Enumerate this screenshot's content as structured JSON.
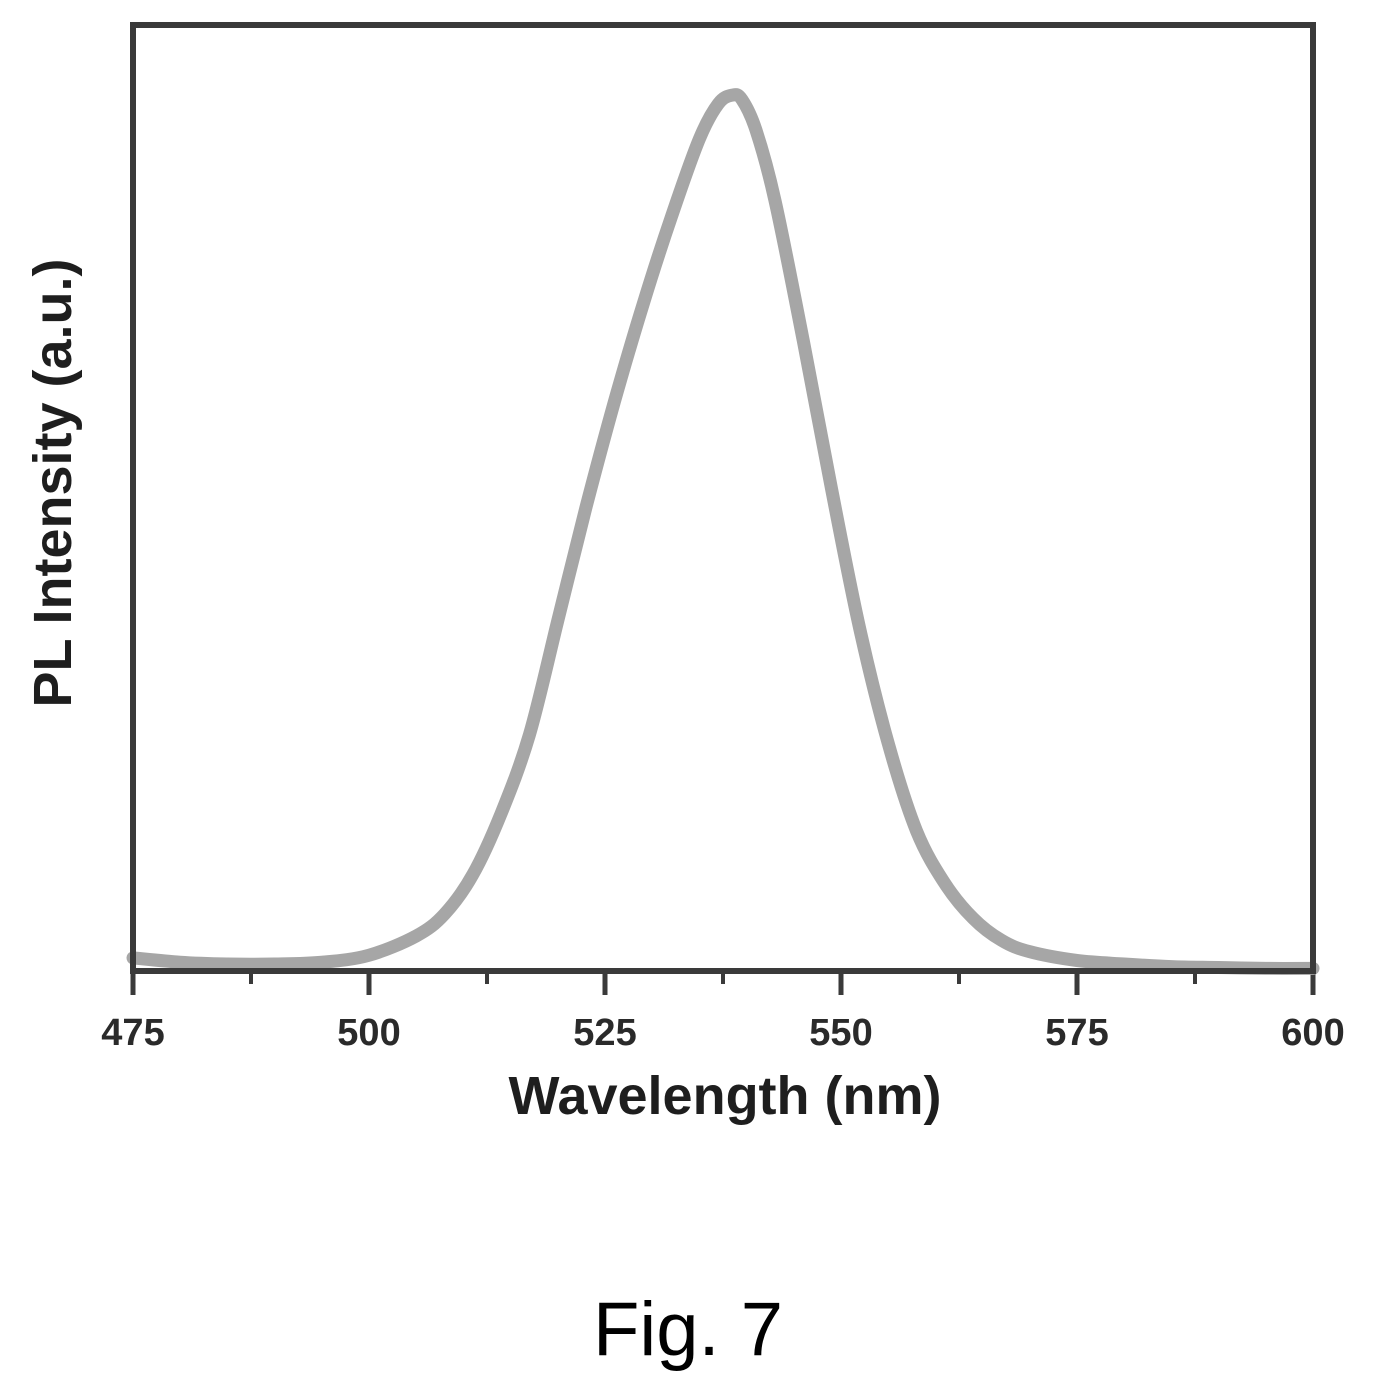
{
  "chart_data": {
    "type": "line",
    "title": "",
    "xlabel": "Wavelength (nm)",
    "ylabel": "PL Intensity (a.u.)",
    "xlim": [
      475,
      600
    ],
    "ylim": [
      0,
      1.08
    ],
    "x_ticks": [
      475,
      500,
      525,
      550,
      575,
      600
    ],
    "x_tick_labels": [
      "475",
      "500",
      "525",
      "550",
      "575",
      "600"
    ],
    "x_minor_ticks": [
      487.5,
      512.5,
      537.5,
      562.5,
      587.5
    ],
    "y_tick_labels_shown": false,
    "grid": false,
    "legend": "none",
    "series": [
      {
        "x": [
          475,
          480,
          485,
          490,
          495,
          500,
          505,
          508,
          511,
          514,
          517,
          520,
          523,
          526,
          529,
          532,
          535,
          537,
          538.5,
          539.5,
          541,
          543,
          546,
          549,
          552,
          555,
          558,
          561,
          564,
          567,
          570,
          575,
          580,
          585,
          590,
          595,
          600
        ],
        "values": [
          0.015,
          0.01,
          0.008,
          0.008,
          0.01,
          0.018,
          0.04,
          0.065,
          0.11,
          0.18,
          0.27,
          0.4,
          0.53,
          0.65,
          0.76,
          0.86,
          0.95,
          0.99,
          1.0,
          0.995,
          0.96,
          0.88,
          0.72,
          0.55,
          0.39,
          0.26,
          0.16,
          0.1,
          0.06,
          0.035,
          0.022,
          0.012,
          0.008,
          0.005,
          0.004,
          0.003,
          0.003
        ]
      }
    ],
    "colors": {
      "line": "#a6a6a6",
      "frame": "#3a3a3a"
    }
  },
  "caption": "Fig. 7"
}
